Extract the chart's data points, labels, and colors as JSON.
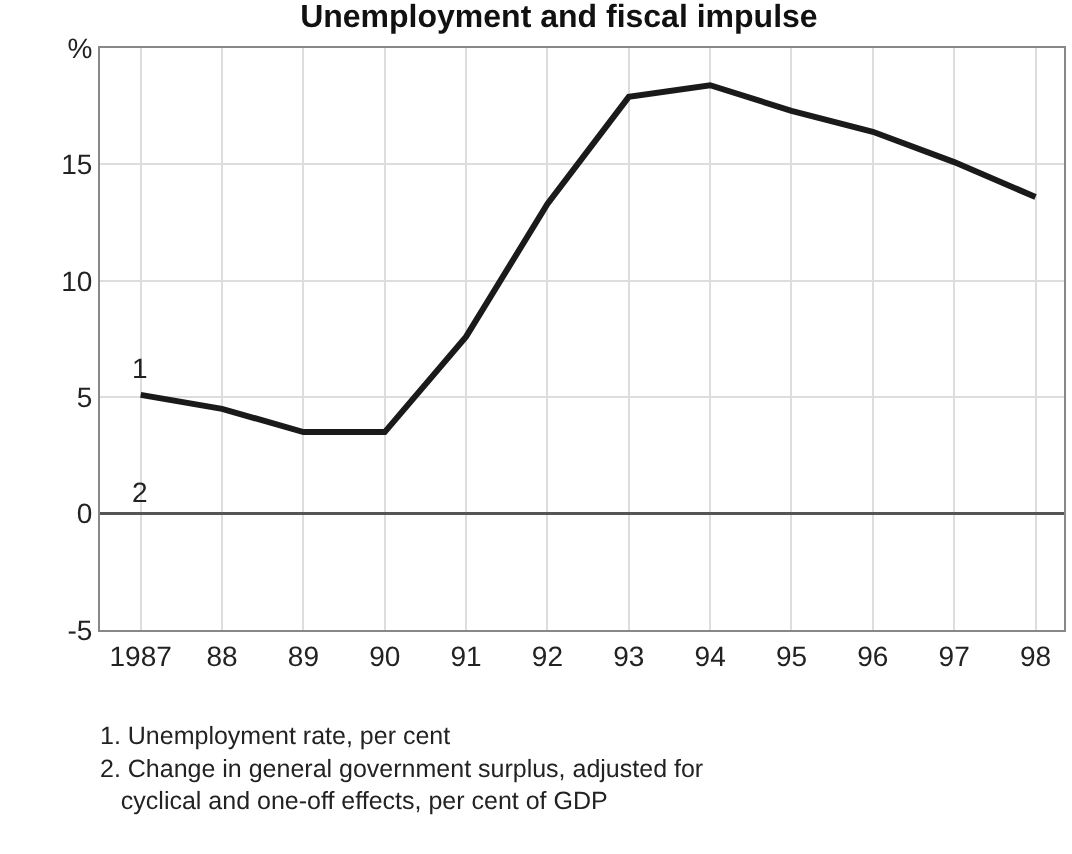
{
  "chart_data": {
    "type": "line",
    "title": "Unemployment and fiscal impulse",
    "x": [
      1987,
      1988,
      1989,
      1990,
      1991,
      1992,
      1993,
      1994,
      1995,
      1996,
      1997,
      1998
    ],
    "series": [
      {
        "name": "1",
        "color": "#1a1a1a",
        "values": [
          5.1,
          4.5,
          3.5,
          3.5,
          7.6,
          13.3,
          17.9,
          18.4,
          17.3,
          16.4,
          15.1,
          13.6
        ]
      }
    ],
    "xlim": [
      1986.5,
      1998.35
    ],
    "xticks": [
      1987,
      {
        "value": 1988,
        "label": "88"
      },
      {
        "value": 1989,
        "label": "89"
      },
      {
        "value": 1990,
        "label": "90"
      },
      {
        "value": 1991,
        "label": "91"
      },
      {
        "value": 1992,
        "label": "92"
      },
      {
        "value": 1993,
        "label": "93"
      },
      {
        "value": 1994,
        "label": "94"
      },
      {
        "value": 1995,
        "label": "95"
      },
      {
        "value": 1996,
        "label": "96"
      },
      {
        "value": 1997,
        "label": "97"
      },
      {
        "value": 1998,
        "label": "98"
      }
    ],
    "ylim": [
      -5,
      20
    ],
    "yticks": [
      -5,
      0,
      5,
      10,
      15,
      {
        "value": 20,
        "label": "%"
      }
    ],
    "ref_lines": [
      {
        "axis": "y",
        "value": 0,
        "color": "#555555"
      }
    ],
    "annotations": [
      {
        "text": "2",
        "x": 1987,
        "y": 0
      },
      "1. Unemployment rate, per cent",
      "2. Change in general government surplus, adjusted for cyclical and one-off effects, per cent of GDP"
    ],
    "grid": true,
    "marker": "none",
    "line_style": "solid",
    "legend": false
  }
}
